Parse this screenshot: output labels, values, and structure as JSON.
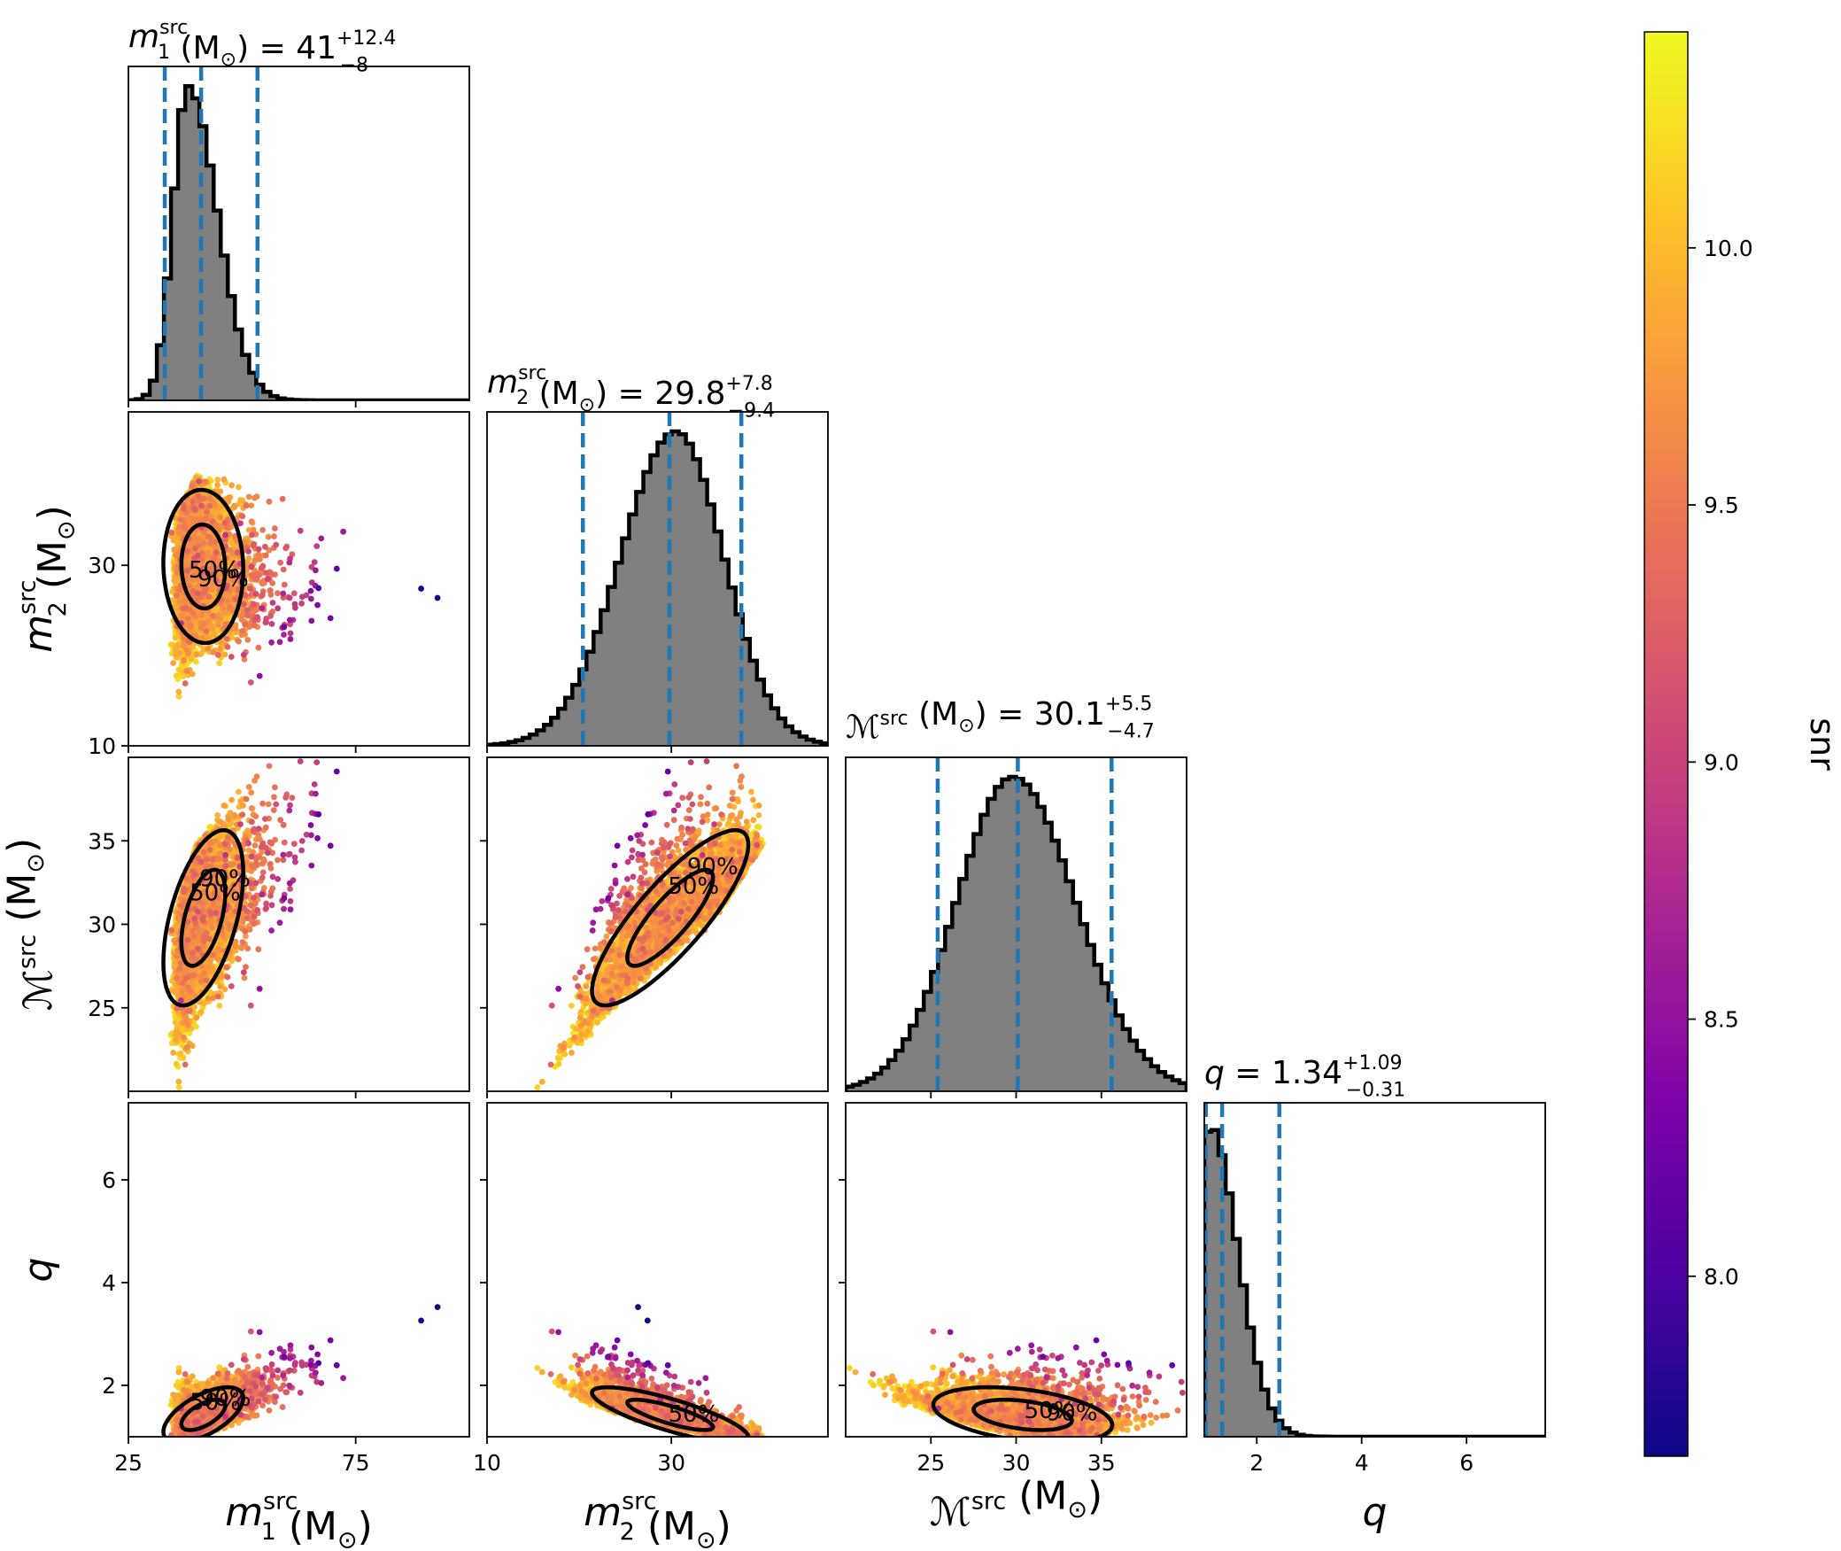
{
  "chart_data": {
    "type": "scatter",
    "layout": "corner-plot",
    "colors": {
      "histogram_fill": "#808080",
      "histogram_edge": "#000000",
      "quantile_line": "#1f77b4",
      "contour": "#000000",
      "colormap": "plasma"
    },
    "parameters": [
      {
        "key": "m1",
        "symbol": "m",
        "subscript": "1",
        "superscript": "src",
        "unit": "(M",
        "unit_sub": "⊙",
        "unit_close": ")",
        "range": [
          25,
          100
        ],
        "ticks": [
          25,
          75
        ],
        "title_eq": " = 41",
        "err_plus": "+12.4",
        "err_minus": "−8",
        "median": 41,
        "lower": 33,
        "upper": 53.4
      },
      {
        "key": "m2",
        "symbol": "m",
        "subscript": "2",
        "superscript": "src",
        "unit": "(M",
        "unit_sub": "⊙",
        "unit_close": ")",
        "range": [
          10,
          47
        ],
        "ticks": [
          10,
          30
        ],
        "title_eq": " = 29.8",
        "err_plus": "+7.8",
        "err_minus": "−9.4",
        "median": 29.8,
        "lower": 20.4,
        "upper": 37.6
      },
      {
        "key": "mc",
        "symbol": "ℳ",
        "subscript": "",
        "superscript": "src",
        "unit": "(M",
        "unit_sub": "⊙",
        "unit_close": ")",
        "range": [
          20,
          40
        ],
        "ticks": [
          25,
          30,
          35
        ],
        "title_eq": " = 30.1",
        "err_plus": "+5.5",
        "err_minus": "−4.7",
        "median": 30.1,
        "lower": 25.4,
        "upper": 35.6
      },
      {
        "key": "q",
        "symbol": "q",
        "subscript": "",
        "superscript": "",
        "unit": "",
        "unit_sub": "",
        "unit_close": "",
        "range": [
          1,
          7.5
        ],
        "ticks": [
          2,
          4,
          6
        ],
        "title_eq": " = 1.34",
        "err_plus": "+1.09",
        "err_minus": "−0.31",
        "median": 1.34,
        "lower": 1.03,
        "upper": 2.43
      }
    ],
    "y_ticks": {
      "m2": [
        10,
        30
      ],
      "mc": [
        25,
        30,
        35
      ],
      "q": [
        2,
        4,
        6
      ]
    },
    "histograms": {
      "m1": {
        "shape": "lognormal",
        "peak": 38,
        "spread_left": 3.2,
        "spread_right": 6.5
      },
      "m2": {
        "shape": "normal",
        "peak": 30.5,
        "spread_left": 6.0,
        "spread_right": 5.2
      },
      "mc": {
        "shape": "normal",
        "peak": 29.8,
        "spread_left": 3.3,
        "spread_right": 3.7
      },
      "q": {
        "shape": "halfnormal",
        "peak": 1.08,
        "spread_left": 0.05,
        "spread_right": 0.55
      }
    },
    "contour_labels": [
      "50%",
      "90%"
    ],
    "colorbar": {
      "label": "snr",
      "range": [
        7.65,
        10.42
      ],
      "ticks": [
        "8.0",
        "8.5",
        "9.0",
        "9.5",
        "10.0"
      ],
      "tick_values": [
        8.0,
        8.5,
        9.0,
        9.5,
        10.0
      ]
    }
  }
}
